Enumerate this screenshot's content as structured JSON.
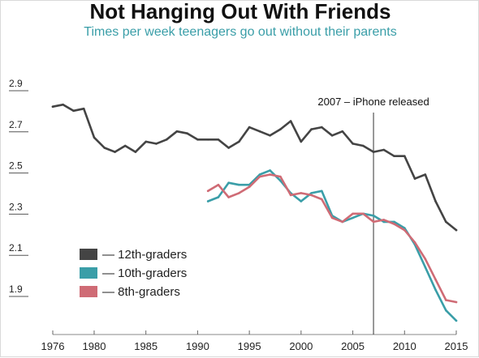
{
  "chart_data": {
    "type": "line",
    "title": "Not Hanging Out With Friends",
    "subtitle": "Times per week teenagers go out without their parents",
    "xlim": [
      1976,
      2015
    ],
    "ylim": [
      1.8,
      2.95
    ],
    "grid": false,
    "legend_position": "bottom-left",
    "y_ticks": [
      "2.9",
      "2.7",
      "2.5",
      "2.3",
      "2.1",
      "1.9"
    ],
    "x_ticks": [
      "1976",
      "1980",
      "1985",
      "1990",
      "1995",
      "2000",
      "2005",
      "2010",
      "2015"
    ],
    "annotation": {
      "x": 2007,
      "label": "2007 – iPhone released"
    },
    "series": [
      {
        "name": "12th-graders",
        "color": "#444444",
        "x": [
          1976,
          1977,
          1978,
          1979,
          1980,
          1981,
          1982,
          1983,
          1984,
          1985,
          1986,
          1987,
          1988,
          1989,
          1990,
          1991,
          1992,
          1993,
          1994,
          1995,
          1996,
          1997,
          1998,
          1999,
          2000,
          2001,
          2002,
          2003,
          2004,
          2005,
          2006,
          2007,
          2008,
          2009,
          2010,
          2011,
          2012,
          2013,
          2014,
          2015
        ],
        "values": [
          2.85,
          2.86,
          2.83,
          2.84,
          2.7,
          2.65,
          2.63,
          2.66,
          2.63,
          2.68,
          2.67,
          2.69,
          2.73,
          2.72,
          2.69,
          2.69,
          2.69,
          2.65,
          2.68,
          2.75,
          2.73,
          2.71,
          2.74,
          2.78,
          2.68,
          2.74,
          2.75,
          2.71,
          2.73,
          2.67,
          2.66,
          2.63,
          2.64,
          2.61,
          2.61,
          2.5,
          2.52,
          2.39,
          2.29,
          2.25
        ]
      },
      {
        "name": "10th-graders",
        "color": "#3a9ea8",
        "x": [
          1991,
          1992,
          1993,
          1994,
          1995,
          1996,
          1997,
          1998,
          1999,
          2000,
          2001,
          2002,
          2003,
          2004,
          2005,
          2006,
          2007,
          2008,
          2009,
          2010,
          2011,
          2012,
          2013,
          2014,
          2015
        ],
        "values": [
          2.39,
          2.41,
          2.48,
          2.47,
          2.47,
          2.52,
          2.54,
          2.49,
          2.43,
          2.39,
          2.43,
          2.44,
          2.32,
          2.29,
          2.31,
          2.33,
          2.32,
          2.29,
          2.29,
          2.26,
          2.18,
          2.07,
          1.96,
          1.86,
          1.81
        ]
      },
      {
        "name": "8th-graders",
        "color": "#cf6b75",
        "x": [
          1991,
          1992,
          1993,
          1994,
          1995,
          1996,
          1997,
          1998,
          1999,
          2000,
          2001,
          2002,
          2003,
          2004,
          2005,
          2006,
          2007,
          2008,
          2009,
          2010,
          2011,
          2012,
          2013,
          2014,
          2015
        ],
        "values": [
          2.44,
          2.47,
          2.41,
          2.43,
          2.46,
          2.51,
          2.52,
          2.51,
          2.42,
          2.43,
          2.42,
          2.4,
          2.31,
          2.29,
          2.33,
          2.33,
          2.29,
          2.3,
          2.28,
          2.25,
          2.19,
          2.11,
          2.01,
          1.91,
          1.9
        ]
      }
    ]
  }
}
